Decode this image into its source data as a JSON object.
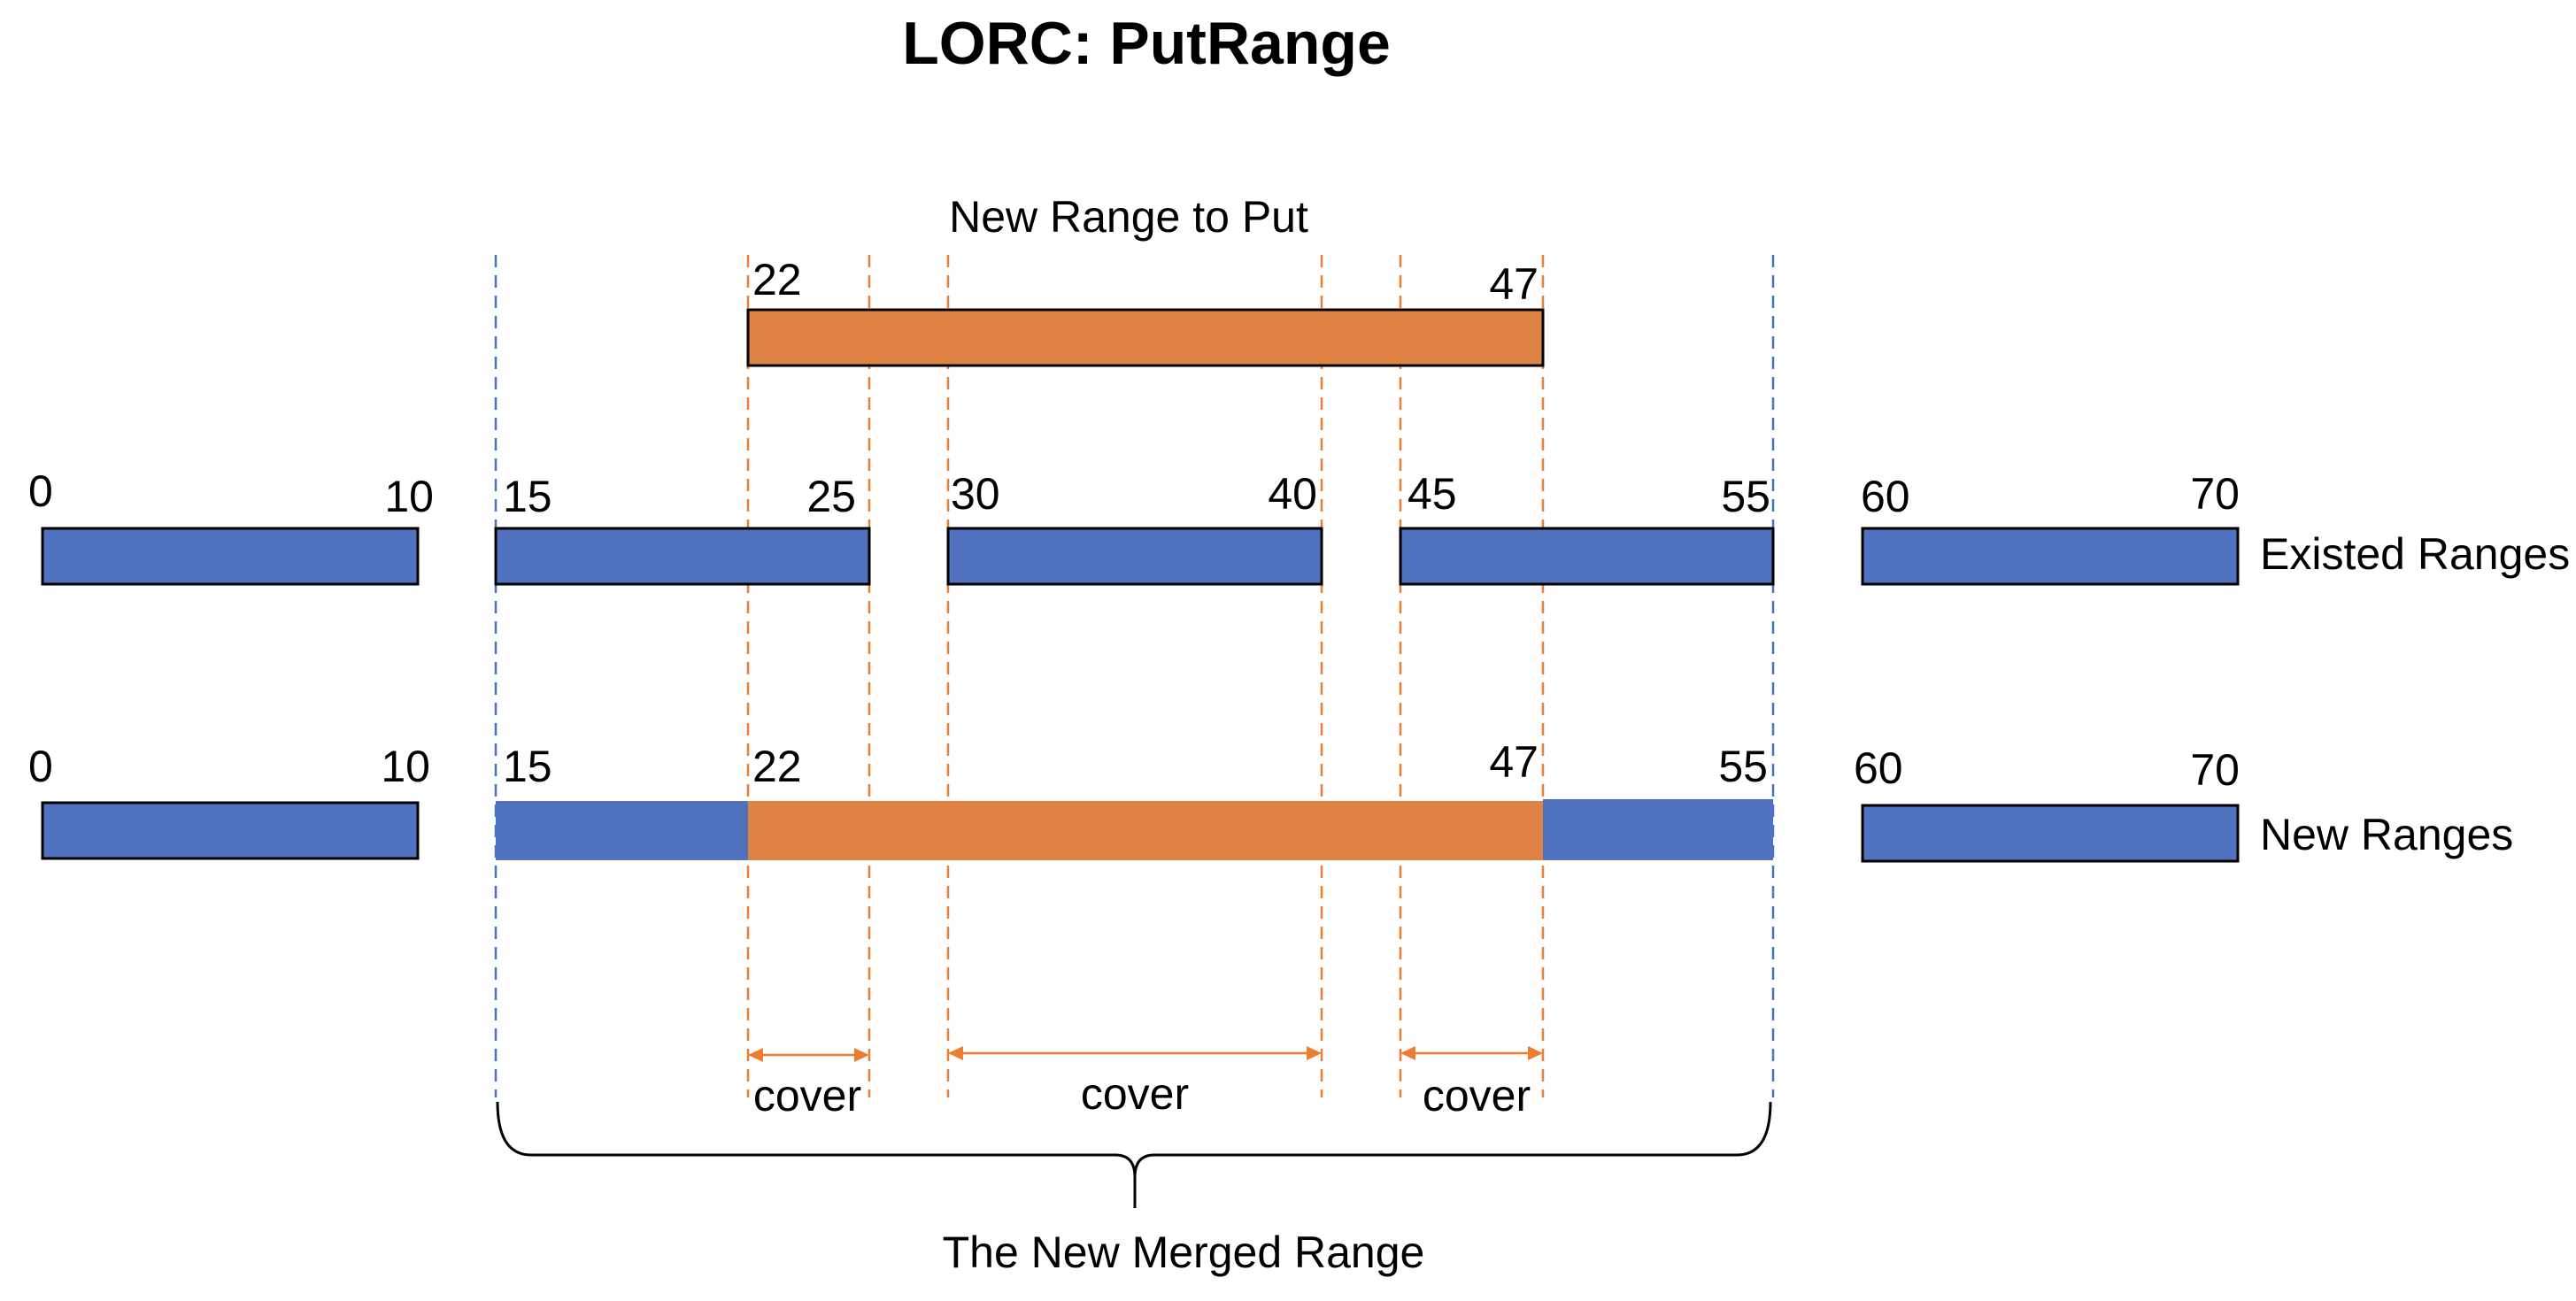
{
  "title": "LORC: PutRange",
  "new_range": {
    "heading": "New Range to Put",
    "start": "22",
    "end": "47"
  },
  "existed": {
    "label": "Existed Ranges",
    "ranges": [
      {
        "start": "0",
        "end": "10"
      },
      {
        "start": "15",
        "end": "25"
      },
      {
        "start": "30",
        "end": "40"
      },
      {
        "start": "45",
        "end": "55"
      },
      {
        "start": "60",
        "end": "70"
      }
    ]
  },
  "new_ranges": {
    "label": "New Ranges",
    "ranges": [
      {
        "start": "0",
        "end": "10"
      },
      {
        "start": "15",
        "mid_start": "22",
        "mid_end": "47",
        "end": "55"
      },
      {
        "start": "60",
        "end": "70"
      }
    ]
  },
  "cover_labels": [
    "cover",
    "cover",
    "cover"
  ],
  "merged_label": "The New Merged Range",
  "colors": {
    "blue": "#4F71BE",
    "orange": "#DE8344",
    "blue_dash": "#4472C4",
    "orange_dash": "#ED7D31",
    "outline": "#000000"
  }
}
